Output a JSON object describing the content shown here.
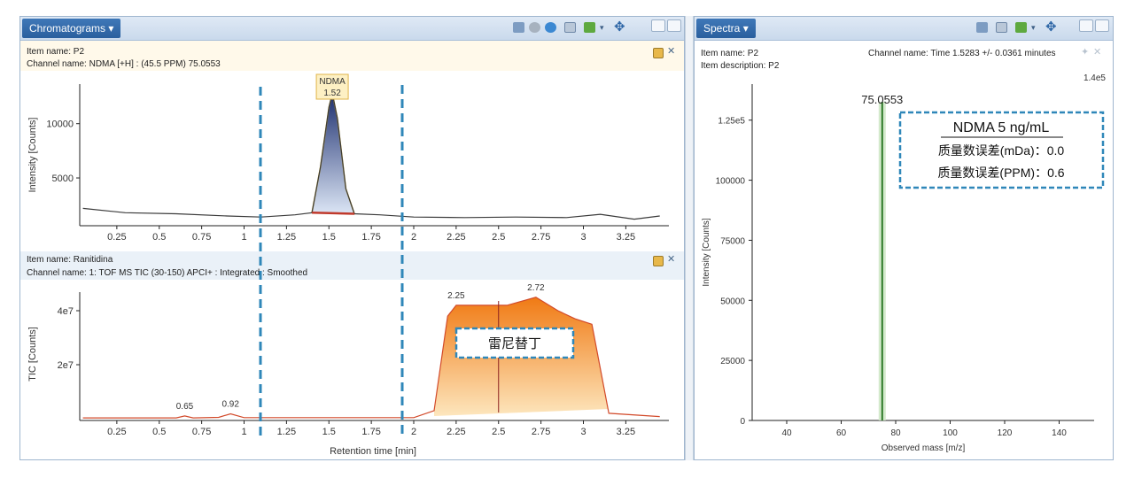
{
  "chromatograms": {
    "tab_label": "Chromatograms ▾",
    "panel1": {
      "item_name": "Item name: P2",
      "channel_name": "Channel name: NDMA [+H] : (45.5 PPM) 75.0553",
      "ylabel": "Intensity [Counts]",
      "peak_label_name": "NDMA",
      "peak_label_time": "1.52",
      "yticks": [
        "10000",
        "5000"
      ]
    },
    "panel2": {
      "item_name": "Item name: Ranitidina",
      "channel_name": "Channel name: 1: TOF MS TIC (30-150) APCI+ : Integrated : Smoothed",
      "ylabel": "TIC [Counts]",
      "yticks": [
        "4e7",
        "2e7"
      ],
      "peak_labels": [
        "0.65",
        "0.92",
        "2.25",
        "2.72"
      ],
      "annotation": "雷尼替丁"
    },
    "xticks": [
      "0.25",
      "0.5",
      "0.75",
      "1",
      "1.25",
      "1.5",
      "1.75",
      "2",
      "2.25",
      "2.5",
      "2.75",
      "3",
      "3.25"
    ],
    "xlabel": "Retention time [min]"
  },
  "spectra": {
    "tab_label": "Spectra ▾",
    "item_name": "Item name: P2",
    "item_description": "Item description: P2",
    "channel_name": "Channel name: Time 1.5283 +/- 0.0361 minutes",
    "y_max_label": "1.4e5",
    "peak_label": "75.0553",
    "ylabel": "Intensity [Counts]",
    "xlabel": "Observed mass [m/z]",
    "yticks": [
      "1.25e5",
      "100000",
      "75000",
      "50000",
      "25000",
      "0"
    ],
    "xticks": [
      "40",
      "60",
      "80",
      "100",
      "120",
      "140"
    ],
    "annotation": {
      "title": "NDMA 5 ng/mL",
      "line1": "质量数误差(mDa)：0.0",
      "line2": "质量数误差(PPM)：0.6"
    }
  },
  "chart_data": [
    {
      "type": "line",
      "ylabel": "Intensity [Counts]",
      "xlim": [
        0.05,
        3.5
      ],
      "x": [
        0.05,
        0.3,
        0.6,
        0.9,
        1.1,
        1.3,
        1.4,
        1.45,
        1.5,
        1.52,
        1.55,
        1.6,
        1.65,
        1.8,
        2.0,
        2.3,
        2.6,
        2.9,
        3.1,
        3.3,
        3.45
      ],
      "series": [
        {
          "values": [
            2200,
            1800,
            1700,
            1500,
            1400,
            1600,
            1800,
            6000,
            11500,
            12800,
            10500,
            4000,
            1700,
            1600,
            1400,
            1350,
            1400,
            1350,
            1650,
            1200,
            1500
          ]
        }
      ],
      "annotations": [
        {
          "text": "NDMA",
          "x": 1.52
        },
        {
          "text": "1.52",
          "x": 1.52
        }
      ]
    },
    {
      "type": "area",
      "ylabel": "TIC [Counts]",
      "xlabel": "Retention time [min]",
      "xlim": [
        0.05,
        3.5
      ],
      "x": [
        0.05,
        0.6,
        0.65,
        0.7,
        0.85,
        0.92,
        1.0,
        1.5,
        2.0,
        2.12,
        2.2,
        2.25,
        2.4,
        2.55,
        2.72,
        2.85,
        2.95,
        3.05,
        3.15,
        3.45
      ],
      "series": [
        {
          "values": [
            300000,
            300000,
            1000000,
            300000,
            500000,
            1800000,
            400000,
            400000,
            400000,
            3000000,
            38000000,
            42000000,
            42000000,
            42000000,
            45000000,
            40000000,
            37000000,
            35000000,
            2000000,
            800000
          ]
        }
      ],
      "annotations": [
        {
          "text": "0.65",
          "x": 0.65
        },
        {
          "text": "0.92",
          "x": 0.92
        },
        {
          "text": "2.25",
          "x": 2.25
        },
        {
          "text": "2.72",
          "x": 2.72
        }
      ]
    },
    {
      "type": "bar",
      "xlabel": "Observed mass [m/z]",
      "ylabel": "Intensity [Counts]",
      "xlim": [
        28,
        152
      ],
      "ylim": [
        0,
        140000
      ],
      "x": [
        75.0553
      ],
      "values": [
        140000
      ],
      "annotations": [
        {
          "text": "75.0553",
          "x": 75.0553
        }
      ]
    }
  ]
}
